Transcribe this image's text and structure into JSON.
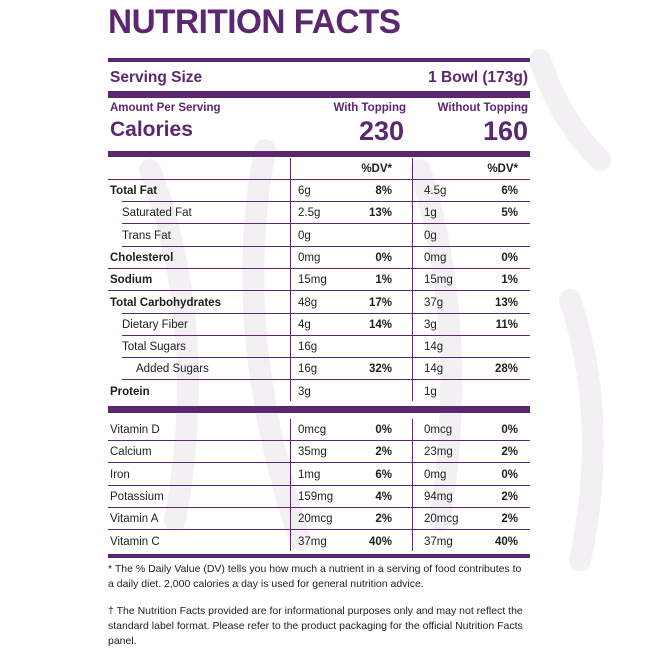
{
  "title": "NUTRITION FACTS",
  "serving": {
    "label": "Serving Size",
    "value": "1 Bowl (173g)"
  },
  "amount_per_serving": "Amount Per Serving",
  "col1_heading": "With Topping",
  "col2_heading": "Without Topping",
  "calories": {
    "label": "Calories",
    "with": "230",
    "without": "160"
  },
  "dv_heading": "%DV*",
  "nutrients": [
    {
      "name": "Total Fat",
      "bold": true,
      "a1": "6g",
      "d1": "8%",
      "a2": "4.5g",
      "d2": "6%"
    },
    {
      "name": "Saturated Fat",
      "bold": false,
      "a1": "2.5g",
      "d1": "13%",
      "a2": "1g",
      "d2": "5%"
    },
    {
      "name": "Trans Fat",
      "bold": false,
      "a1": "0g",
      "d1": "",
      "a2": "0g",
      "d2": ""
    },
    {
      "name": "Cholesterol",
      "bold": true,
      "a1": "0mg",
      "d1": "0%",
      "a2": "0mg",
      "d2": "0%"
    },
    {
      "name": "Sodium",
      "bold": true,
      "a1": "15mg",
      "d1": "1%",
      "a2": "15mg",
      "d2": "1%"
    },
    {
      "name": "Total Carbohydrates",
      "bold": true,
      "a1": "48g",
      "d1": "17%",
      "a2": "37g",
      "d2": "13%"
    },
    {
      "name": "Dietary Fiber",
      "bold": false,
      "a1": "4g",
      "d1": "14%",
      "a2": "3g",
      "d2": "11%"
    },
    {
      "name": "Total Sugars",
      "bold": false,
      "a1": "16g",
      "d1": "",
      "a2": "14g",
      "d2": ""
    },
    {
      "name": "Added Sugars",
      "bold": false,
      "a1": "16g",
      "d1": "32%",
      "a2": "14g",
      "d2": "28%"
    },
    {
      "name": "Protein",
      "bold": true,
      "a1": "3g",
      "d1": "",
      "a2": "1g",
      "d2": ""
    }
  ],
  "vitamins": [
    {
      "name": "Vitamin D",
      "a1": "0mcg",
      "d1": "0%",
      "a2": "0mcg",
      "d2": "0%"
    },
    {
      "name": "Calcium",
      "a1": "35mg",
      "d1": "2%",
      "a2": "23mg",
      "d2": "2%"
    },
    {
      "name": "Iron",
      "a1": "1mg",
      "d1": "6%",
      "a2": "0mg",
      "d2": "0%"
    },
    {
      "name": "Potassium",
      "a1": "159mg",
      "d1": "4%",
      "a2": "94mg",
      "d2": "2%"
    },
    {
      "name": "Vitamin A",
      "a1": "20mcg",
      "d1": "2%",
      "a2": "20mcg",
      "d2": "2%"
    },
    {
      "name": "Vitamin C",
      "a1": "37mg",
      "d1": "40%",
      "a2": "37mg",
      "d2": "40%"
    }
  ],
  "footnote_dv": "* The % Daily Value (DV) tells you how much a nutrient in a serving of food contributes to a daily diet. 2,000 calories a day is used for general nutrition advice.",
  "footnote_disclaimer": "† The Nutrition Facts provided are for informational purposes only and may not reflect the standard label format. Please refer to the product packaging for the official Nutrition Facts panel.",
  "colors": {
    "accent": "#5b2770"
  }
}
